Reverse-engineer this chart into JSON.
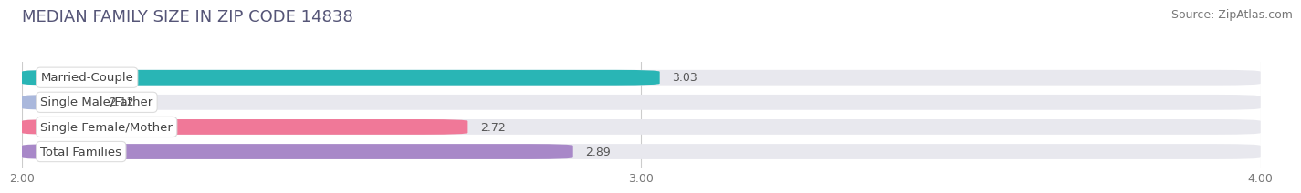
{
  "title": "MEDIAN FAMILY SIZE IN ZIP CODE 14838",
  "source": "Source: ZipAtlas.com",
  "categories": [
    "Married-Couple",
    "Single Male/Father",
    "Single Female/Mother",
    "Total Families"
  ],
  "values": [
    3.03,
    2.12,
    2.72,
    2.89
  ],
  "bar_colors": [
    "#29b5b5",
    "#aab8dc",
    "#f07898",
    "#a888c8"
  ],
  "track_color": "#e8e8ee",
  "label_bg_color": "#ffffff",
  "xlim": [
    2.0,
    4.0
  ],
  "xticks": [
    2.0,
    3.0,
    4.0
  ],
  "xtick_labels": [
    "2.00",
    "3.00",
    "4.00"
  ],
  "xmin": 2.0,
  "xmax": 4.0,
  "bar_height": 0.62,
  "background_color": "#ffffff",
  "plot_bg_color": "#ffffff",
  "title_fontsize": 13,
  "source_fontsize": 9,
  "label_fontsize": 9.5,
  "value_fontsize": 9,
  "tick_fontsize": 9
}
